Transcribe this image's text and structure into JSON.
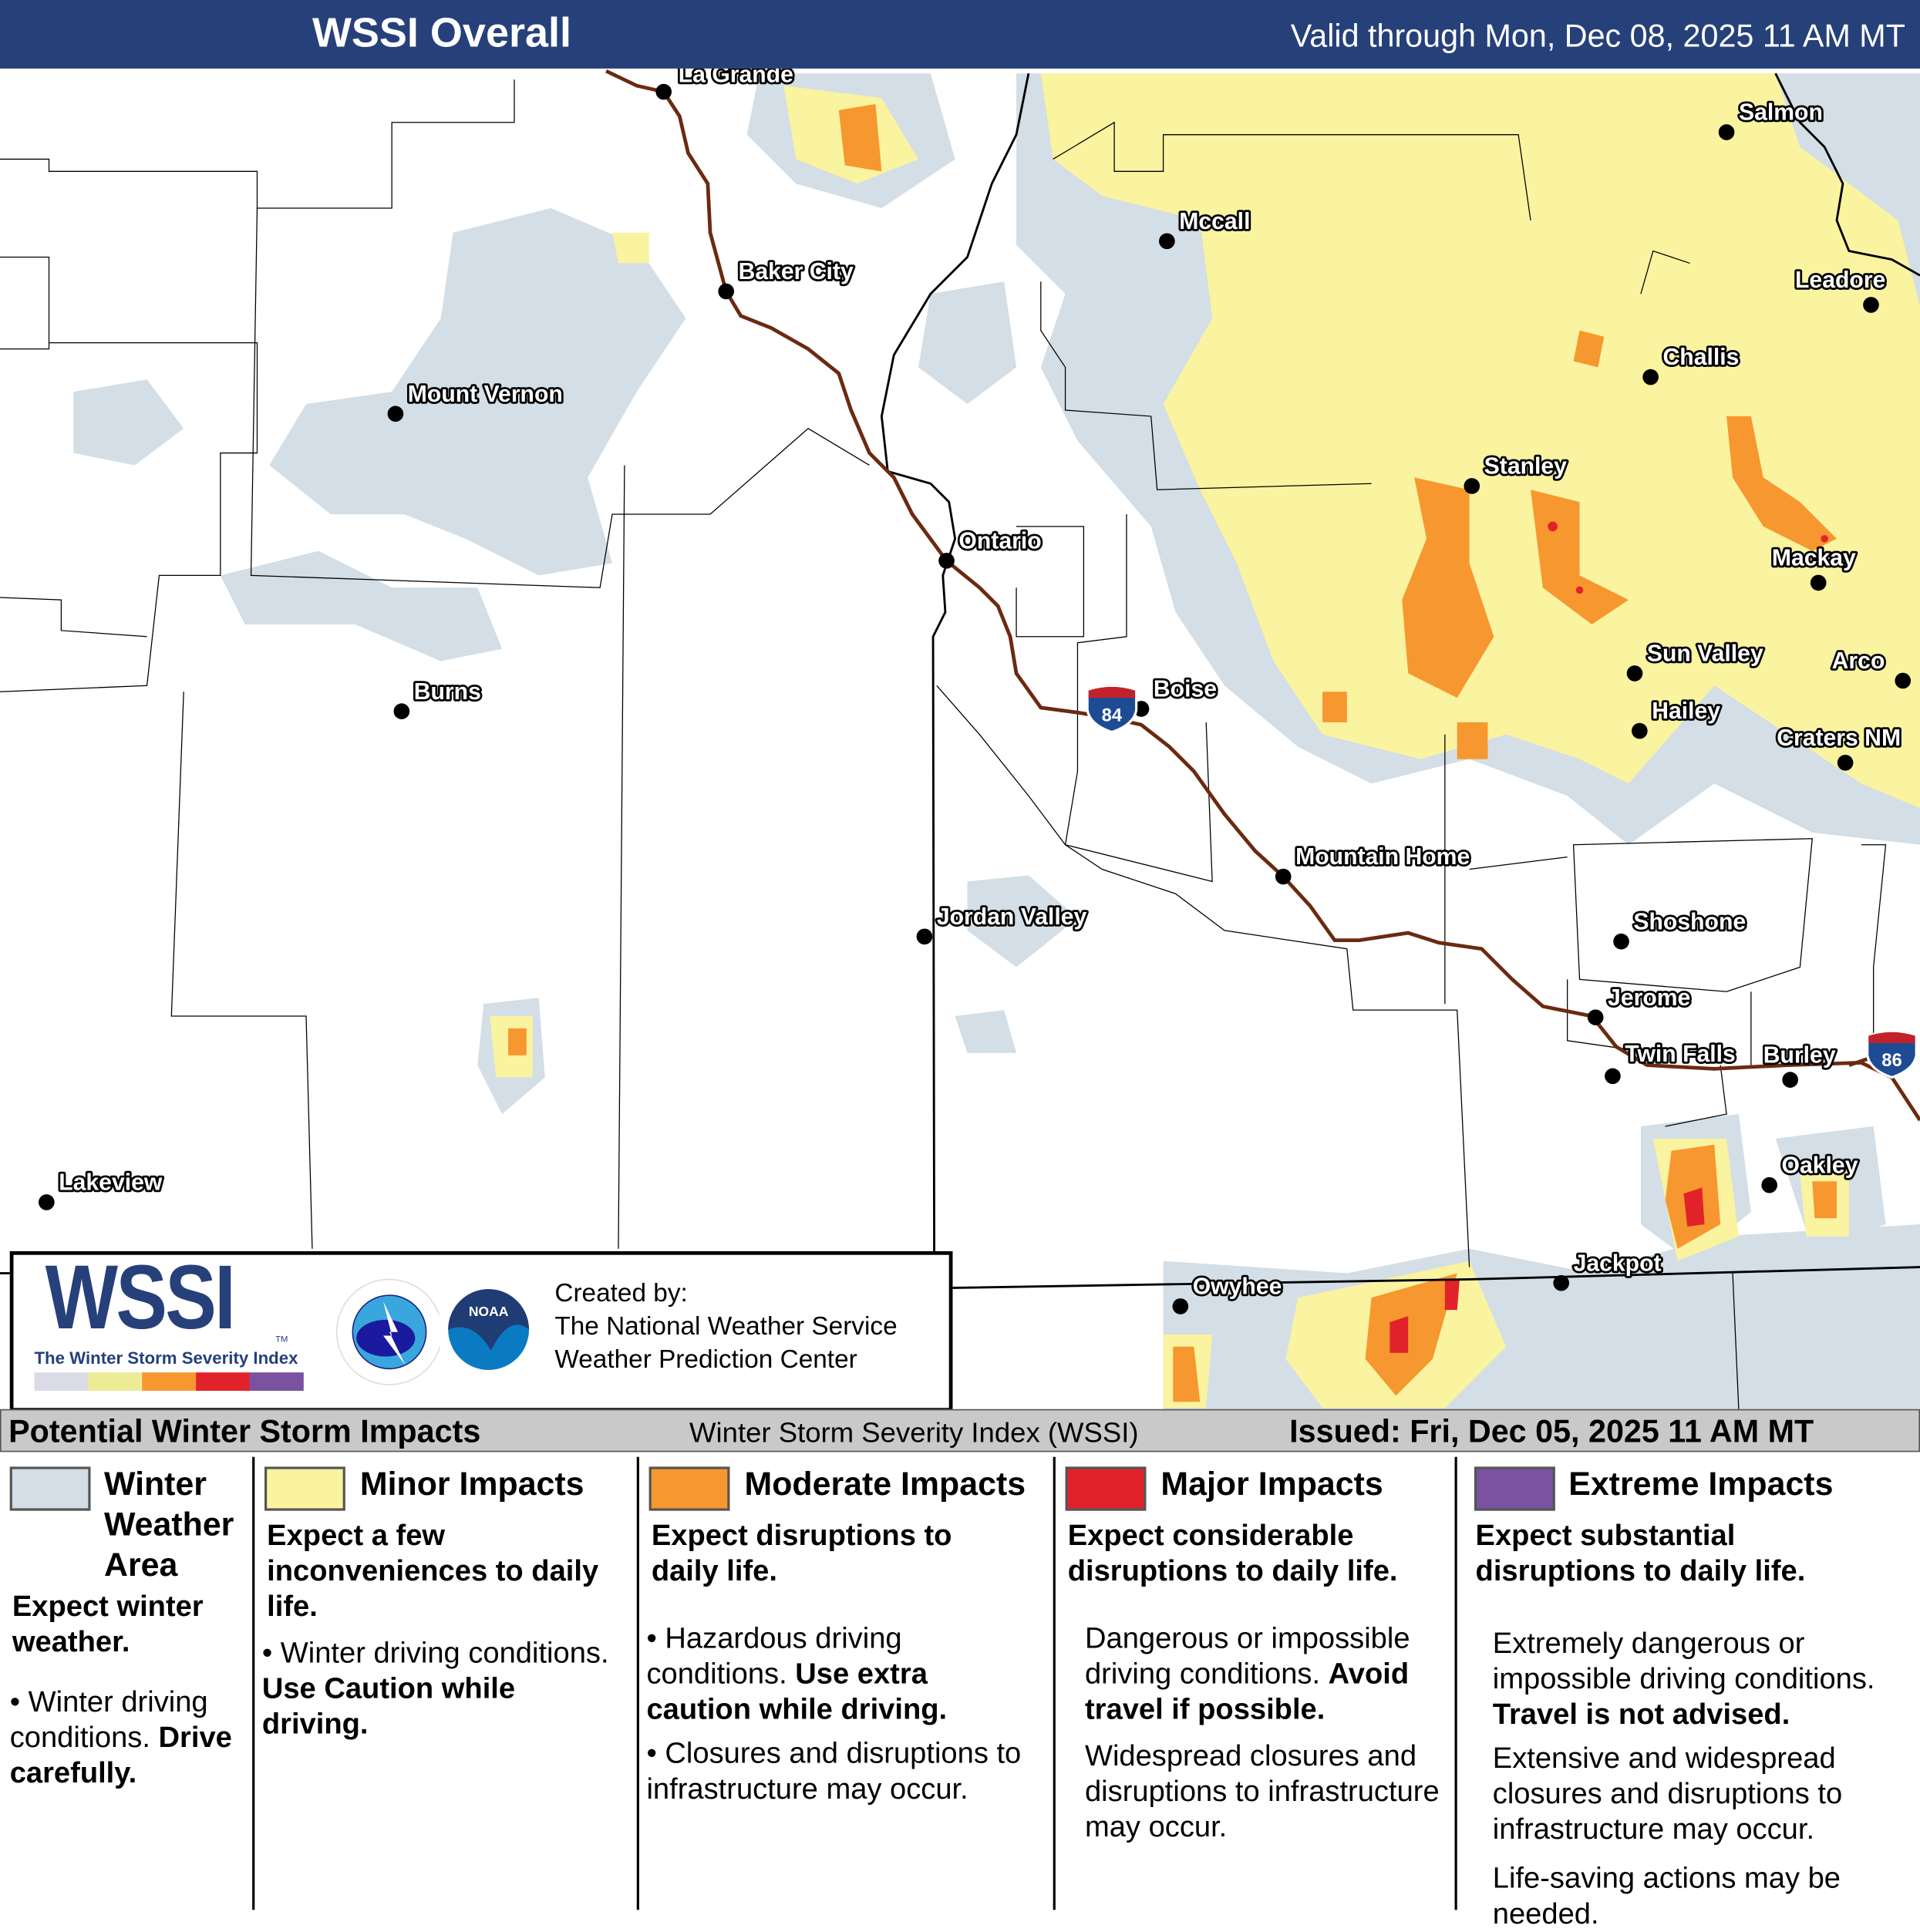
{
  "header": {
    "title": "WSSI Overall",
    "valid": "Valid through Mon, Dec 08, 2025 11 AM MT"
  },
  "colors": {
    "header": "#26407a",
    "winter_weather": "#d3dee6",
    "minor": "#faf3a0",
    "moderate": "#f7972f",
    "major": "#e2222a",
    "extreme": "#7a52a1",
    "interstate": "#6b2a10"
  },
  "map": {
    "cities": [
      {
        "name": "La Grande"
      },
      {
        "name": "Baker City"
      },
      {
        "name": "Mount Vernon"
      },
      {
        "name": "Burns"
      },
      {
        "name": "Lakeview"
      },
      {
        "name": "Ontario"
      },
      {
        "name": "Boise"
      },
      {
        "name": "Mccall"
      },
      {
        "name": "Salmon"
      },
      {
        "name": "Leadore"
      },
      {
        "name": "Challis"
      },
      {
        "name": "Stanley"
      },
      {
        "name": "Mackay"
      },
      {
        "name": "Sun Valley"
      },
      {
        "name": "Arco"
      },
      {
        "name": "Hailey"
      },
      {
        "name": "Craters NM"
      },
      {
        "name": "Mountain Home"
      },
      {
        "name": "Jordan Valley"
      },
      {
        "name": "Shoshone"
      },
      {
        "name": "Jerome"
      },
      {
        "name": "Twin Falls"
      },
      {
        "name": "Burley"
      },
      {
        "name": "Oakley"
      },
      {
        "name": "Jackpot"
      },
      {
        "name": "Owyhee"
      }
    ],
    "shields": [
      {
        "route": "84"
      },
      {
        "route": "86"
      }
    ]
  },
  "logo": {
    "wssi": "WSSI",
    "tm": "TM",
    "subtitle": "The Winter Storm Severity Index",
    "created_by": "Created by:",
    "org1": "The National Weather Service",
    "org2": "Weather Prediction Center",
    "nws": "NATIONAL WEATHER SERVICE",
    "noaa": "NOAA"
  },
  "legend": {
    "title": "Potential Winter Storm Impacts",
    "index_name": "Winter Storm Severity Index (WSSI)",
    "issued": "Issued: Fri, Dec 05, 2025 11 AM MT",
    "categories": [
      {
        "name": "Winter Weather Area",
        "expect": "Expect winter weather.",
        "text1": "Winter driving conditions.",
        "bold1": "Drive carefully."
      },
      {
        "name": "Minor Impacts",
        "expect": "Expect a few inconveniences to daily life.",
        "text1": "Winter driving conditions.",
        "bold1": "Use Caution while driving."
      },
      {
        "name": "Moderate Impacts",
        "expect": "Expect disruptions to daily life.",
        "text1": "Hazardous driving conditions.",
        "bold1": "Use extra caution while driving.",
        "text2": "Closures and disruptions to infrastructure may occur."
      },
      {
        "name": "Major Impacts",
        "expect": "Expect considerable disruptions to daily life.",
        "text1": "Dangerous or impossible driving conditions.",
        "bold1": "Avoid travel if possible.",
        "text2": "Widespread closures and disruptions to infrastructure may occur."
      },
      {
        "name": "Extreme Impacts",
        "expect": "Expect substantial disruptions to daily life.",
        "text1": "Extremely dangerous or impossible driving conditions.",
        "bold1": "Travel is not advised.",
        "text2": "Extensive and widespread closures and disruptions to infrastructure may occur.",
        "text3": "Life-saving actions may be needed."
      }
    ]
  }
}
